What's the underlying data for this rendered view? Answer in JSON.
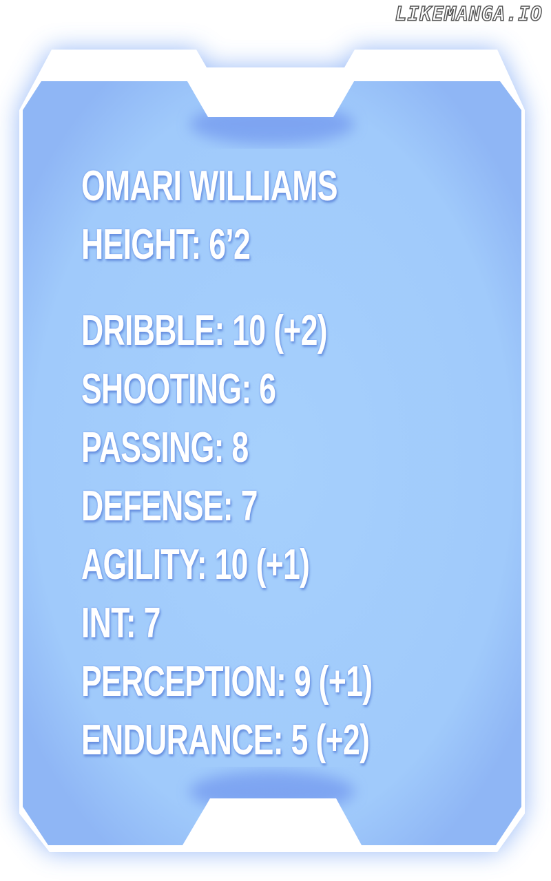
{
  "watermark": "LIKEMANGA.IO",
  "colors": {
    "panel": "#a3cdfb",
    "panel_glow": "#6f95ee",
    "frame": "#ffffff"
  },
  "profile": {
    "name": "OMARI WILLIAMS",
    "height": "HEIGHT: 6’2"
  },
  "stats": [
    "DRIBBLE: 10 (+2)",
    "SHOOTING: 6",
    "PASSING: 8",
    "DEFENSE: 7",
    "AGILITY: 10 (+1)",
    "INT: 7",
    "PERCEPTION: 9 (+1)",
    "ENDURANCE: 5 (+2)"
  ]
}
